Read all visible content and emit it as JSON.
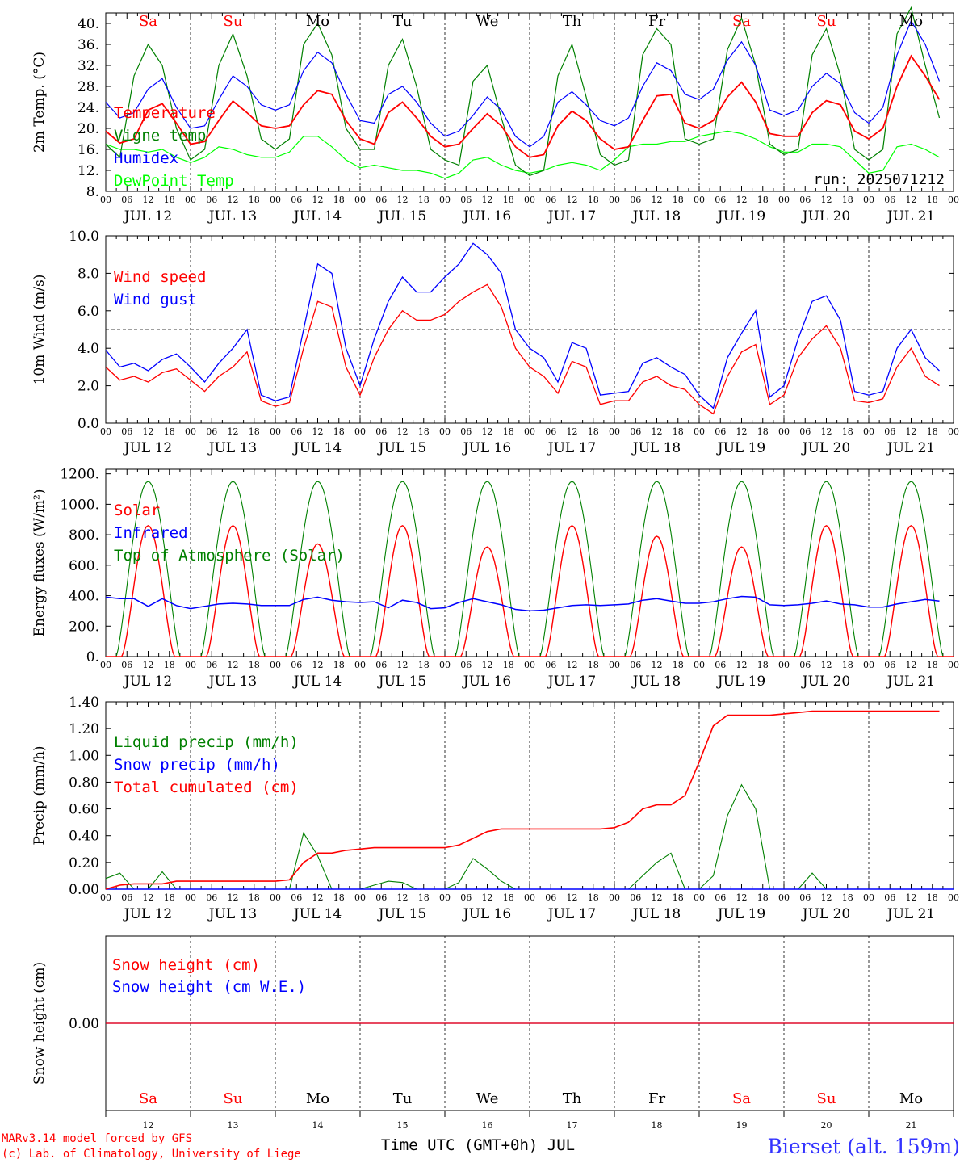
{
  "chart_data": [
    {
      "type": "line",
      "ylabel": "2m Temp. (°C)",
      "yticks": [
        "8.",
        "12.",
        "16.",
        "20.",
        "24.",
        "28.",
        "32.",
        "36.",
        "40."
      ],
      "ylim": [
        8,
        42
      ],
      "run_label": "run: 2025071212",
      "series": [
        {
          "name": "Temperature",
          "color": "#ff0000",
          "values": [
            19.5,
            17.2,
            18.0,
            23.5,
            24.7,
            21.0,
            17.0,
            17.5,
            21.5,
            25.2,
            23.0,
            20.5,
            20.0,
            20.5,
            24.5,
            27.2,
            26.5,
            21.5,
            18.0,
            17.0,
            23.0,
            25.0,
            22.0,
            18.5,
            16.5,
            17.0,
            20.0,
            22.8,
            20.5,
            16.5,
            14.5,
            15.0,
            20.5,
            23.3,
            21.5,
            18.0,
            16.0,
            16.5,
            21.5,
            26.2,
            26.5,
            21.0,
            20.0,
            21.5,
            26.0,
            28.8,
            25.0,
            19.0,
            18.5,
            18.5,
            23.0,
            25.3,
            24.5,
            19.5,
            18.0,
            20.0,
            28.0,
            33.8,
            30.0,
            25.5
          ]
        },
        {
          "name": "Vigne temp",
          "color": "#008000",
          "values": [
            17.0,
            14.5,
            30.0,
            36.0,
            32.0,
            20.0,
            14.0,
            16.0,
            32.0,
            38.0,
            30.0,
            18.0,
            16.0,
            18.0,
            36.0,
            40.0,
            34.0,
            20.0,
            16.0,
            16.0,
            32.0,
            37.0,
            28.0,
            16.0,
            14.0,
            13.0,
            29.0,
            32.0,
            22.0,
            13.0,
            11.0,
            12.0,
            30.0,
            36.0,
            26.0,
            15.0,
            13.0,
            14.0,
            34.0,
            39.0,
            36.0,
            18.0,
            17.0,
            18.0,
            35.0,
            41.0,
            32.0,
            17.0,
            15.0,
            16.0,
            34.0,
            39.0,
            30.0,
            16.0,
            14.0,
            16.0,
            38.0,
            43.0,
            32.0,
            22.0
          ]
        },
        {
          "name": "Humidex",
          "color": "#0000ff",
          "values": [
            25.0,
            22.0,
            23.0,
            27.5,
            29.5,
            24.0,
            20.0,
            20.5,
            25.5,
            30.0,
            28.0,
            24.5,
            23.5,
            24.5,
            31.0,
            34.5,
            32.5,
            26.5,
            21.5,
            21.0,
            26.5,
            28.0,
            25.0,
            21.0,
            18.5,
            19.5,
            22.5,
            26.0,
            23.5,
            18.5,
            16.5,
            18.5,
            25.0,
            27.0,
            24.5,
            21.5,
            20.5,
            22.0,
            28.0,
            32.5,
            31.0,
            26.5,
            25.5,
            27.5,
            33.0,
            36.5,
            32.0,
            23.5,
            22.5,
            23.5,
            28.0,
            30.5,
            28.5,
            23.0,
            21.0,
            24.0,
            34.0,
            40.5,
            36.0,
            29.0
          ]
        },
        {
          "name": "DewPoint Temp",
          "color": "#00ff00",
          "values": [
            17.0,
            16.0,
            16.0,
            15.5,
            16.0,
            14.5,
            13.5,
            14.5,
            16.5,
            16.0,
            15.0,
            14.5,
            14.5,
            15.5,
            18.5,
            18.5,
            16.5,
            14.0,
            12.5,
            13.0,
            12.5,
            12.0,
            12.0,
            11.5,
            10.5,
            11.5,
            14.0,
            14.5,
            13.0,
            12.0,
            11.5,
            12.0,
            13.0,
            13.5,
            13.0,
            12.0,
            14.0,
            16.5,
            17.0,
            17.0,
            17.5,
            17.5,
            18.5,
            19.0,
            19.5,
            19.0,
            18.0,
            16.5,
            15.5,
            15.5,
            17.0,
            17.0,
            16.5,
            14.0,
            11.5,
            12.0,
            16.5,
            17.0,
            16.0,
            14.5
          ]
        }
      ]
    },
    {
      "type": "line",
      "ylabel": "10m Wind (m/s)",
      "yticks": [
        "0.0",
        "2.0",
        "4.0",
        "6.0",
        "8.0",
        "10.0"
      ],
      "ylim": [
        0,
        10
      ],
      "reference_line": 5.0,
      "series": [
        {
          "name": "Wind speed",
          "color": "#ff0000",
          "values": [
            3.0,
            2.3,
            2.5,
            2.2,
            2.7,
            2.9,
            2.3,
            1.7,
            2.5,
            3.0,
            3.8,
            1.2,
            0.9,
            1.1,
            4.0,
            6.5,
            6.2,
            3.0,
            1.5,
            3.5,
            5.0,
            6.0,
            5.5,
            5.5,
            5.8,
            6.5,
            7.0,
            7.4,
            6.2,
            4.0,
            3.0,
            2.5,
            1.6,
            3.3,
            3.0,
            1.0,
            1.2,
            1.2,
            2.2,
            2.5,
            2.0,
            1.8,
            1.0,
            0.5,
            2.5,
            3.8,
            4.2,
            1.0,
            1.5,
            3.5,
            4.5,
            5.2,
            4.0,
            1.2,
            1.1,
            1.3,
            3.0,
            4.0,
            2.5,
            2.0
          ]
        },
        {
          "name": "Wind gust",
          "color": "#0000ff",
          "values": [
            3.9,
            3.0,
            3.2,
            2.8,
            3.4,
            3.7,
            3.0,
            2.2,
            3.2,
            4.0,
            5.0,
            1.5,
            1.2,
            1.4,
            5.0,
            8.5,
            8.0,
            4.0,
            2.0,
            4.5,
            6.5,
            7.8,
            7.0,
            7.0,
            7.8,
            8.5,
            9.6,
            9.0,
            8.0,
            5.0,
            4.0,
            3.5,
            2.2,
            4.3,
            4.0,
            1.5,
            1.6,
            1.7,
            3.2,
            3.5,
            3.0,
            2.6,
            1.5,
            0.8,
            3.5,
            4.8,
            6.0,
            1.4,
            2.0,
            4.5,
            6.5,
            6.8,
            5.5,
            1.7,
            1.5,
            1.7,
            4.0,
            5.0,
            3.5,
            2.8
          ]
        }
      ]
    },
    {
      "type": "line",
      "ylabel": "Energy fluxes (W/m²)",
      "yticks": [
        "0.",
        "200.",
        "400.",
        "600.",
        "800.",
        "1000.",
        "1200."
      ],
      "ylim": [
        0,
        1230
      ],
      "series": [
        {
          "name": "Solar",
          "color": "#ff0000",
          "peaks": [
            860,
            860,
            740,
            860,
            720,
            860,
            790,
            720,
            860,
            860
          ]
        },
        {
          "name": "Infrared",
          "color": "#0000ff",
          "values": [
            390,
            380,
            380,
            330,
            380,
            335,
            315,
            330,
            345,
            350,
            345,
            335,
            335,
            335,
            375,
            390,
            370,
            360,
            355,
            360,
            320,
            370,
            355,
            315,
            320,
            355,
            380,
            360,
            340,
            310,
            300,
            305,
            320,
            335,
            340,
            335,
            340,
            345,
            370,
            380,
            365,
            350,
            350,
            360,
            380,
            395,
            390,
            340,
            335,
            340,
            350,
            365,
            345,
            340,
            325,
            325,
            345,
            360,
            375,
            365
          ]
        },
        {
          "name": "Top of Atmosphere (Solar)",
          "color": "#008000",
          "peak": 1150
        }
      ]
    },
    {
      "type": "line",
      "ylabel": "Precip (mm/h)",
      "yticks": [
        "0.00",
        "0.20",
        "0.40",
        "0.60",
        "0.80",
        "1.00",
        "1.20",
        "1.40"
      ],
      "ylim": [
        0,
        1.4
      ],
      "series": [
        {
          "name": "Liquid precip (mm/h)",
          "color": "#008000",
          "values": [
            0.08,
            0.12,
            0.0,
            0.0,
            0.13,
            0.0,
            0.0,
            0.0,
            0.0,
            0.0,
            0.0,
            0.0,
            0.0,
            0.0,
            0.42,
            0.25,
            0.0,
            0.0,
            0.0,
            0.03,
            0.06,
            0.05,
            0.0,
            0.0,
            0.0,
            0.05,
            0.23,
            0.15,
            0.06,
            0.0,
            0.0,
            0.0,
            0.0,
            0.0,
            0.0,
            0.0,
            0.0,
            0.0,
            0.1,
            0.2,
            0.27,
            0.0,
            0.0,
            0.1,
            0.55,
            0.78,
            0.6,
            0.0,
            0.0,
            0.0,
            0.12,
            0.0,
            0.0,
            0.0,
            0.0,
            0.0,
            0.0,
            0.0,
            0.0,
            0.0
          ]
        },
        {
          "name": "Snow precip (mm/h)",
          "color": "#0000ff",
          "values": [
            0
          ]
        },
        {
          "name": "Total cumulated (cm)",
          "color": "#ff0000",
          "values": [
            0.0,
            0.03,
            0.04,
            0.04,
            0.04,
            0.06,
            0.06,
            0.06,
            0.06,
            0.06,
            0.06,
            0.06,
            0.06,
            0.07,
            0.2,
            0.27,
            0.27,
            0.29,
            0.3,
            0.31,
            0.31,
            0.31,
            0.31,
            0.31,
            0.31,
            0.33,
            0.38,
            0.43,
            0.45,
            0.45,
            0.45,
            0.45,
            0.45,
            0.45,
            0.45,
            0.45,
            0.46,
            0.5,
            0.6,
            0.63,
            0.63,
            0.7,
            0.95,
            1.22,
            1.3,
            1.3,
            1.3,
            1.3,
            1.31,
            1.32,
            1.33,
            1.33,
            1.33,
            1.33,
            1.33,
            1.33,
            1.33,
            1.33,
            1.33,
            1.33
          ]
        }
      ]
    },
    {
      "type": "line",
      "ylabel": "Snow height (cm)",
      "yticks": [
        "0.00"
      ],
      "ylim": [
        -1,
        1
      ],
      "series": [
        {
          "name": "Snow height (cm)",
          "color": "#ff0000",
          "values": [
            0,
            0
          ]
        },
        {
          "name": "Snow height (cm W.E.)",
          "color": "#0000ff",
          "values": [
            0,
            0
          ]
        }
      ]
    }
  ],
  "x_axis": {
    "hour_ticks": [
      "00",
      "06",
      "12",
      "18"
    ],
    "end_tick": "00",
    "dates": [
      "JUL 12",
      "JUL 13",
      "JUL 14",
      "JUL 15",
      "JUL 16",
      "JUL 17",
      "JUL 18",
      "JUL 19",
      "JUL 20",
      "JUL 21"
    ],
    "weekdays": [
      {
        "label": "Sa",
        "color": "#ff0000"
      },
      {
        "label": "Su",
        "color": "#ff0000"
      },
      {
        "label": "Mo",
        "color": "#000000"
      },
      {
        "label": "Tu",
        "color": "#000000"
      },
      {
        "label": "We",
        "color": "#000000"
      },
      {
        "label": "Th",
        "color": "#000000"
      },
      {
        "label": "Fr",
        "color": "#000000"
      },
      {
        "label": "Sa",
        "color": "#ff0000"
      },
      {
        "label": "Su",
        "color": "#ff0000"
      },
      {
        "label": "Mo",
        "color": "#000000"
      }
    ],
    "day_numbers": [
      "12",
      "13",
      "14",
      "15",
      "16",
      "17",
      "18",
      "19",
      "20",
      "21"
    ],
    "xlabel": "Time UTC (GMT+0h) JUL"
  },
  "footer": {
    "credit_line1": "MARv3.14 model forced by GFS",
    "credit_line2": "(c) Lab. of Climatology, University of Liege",
    "station": "Bierset (alt. 159m)"
  }
}
